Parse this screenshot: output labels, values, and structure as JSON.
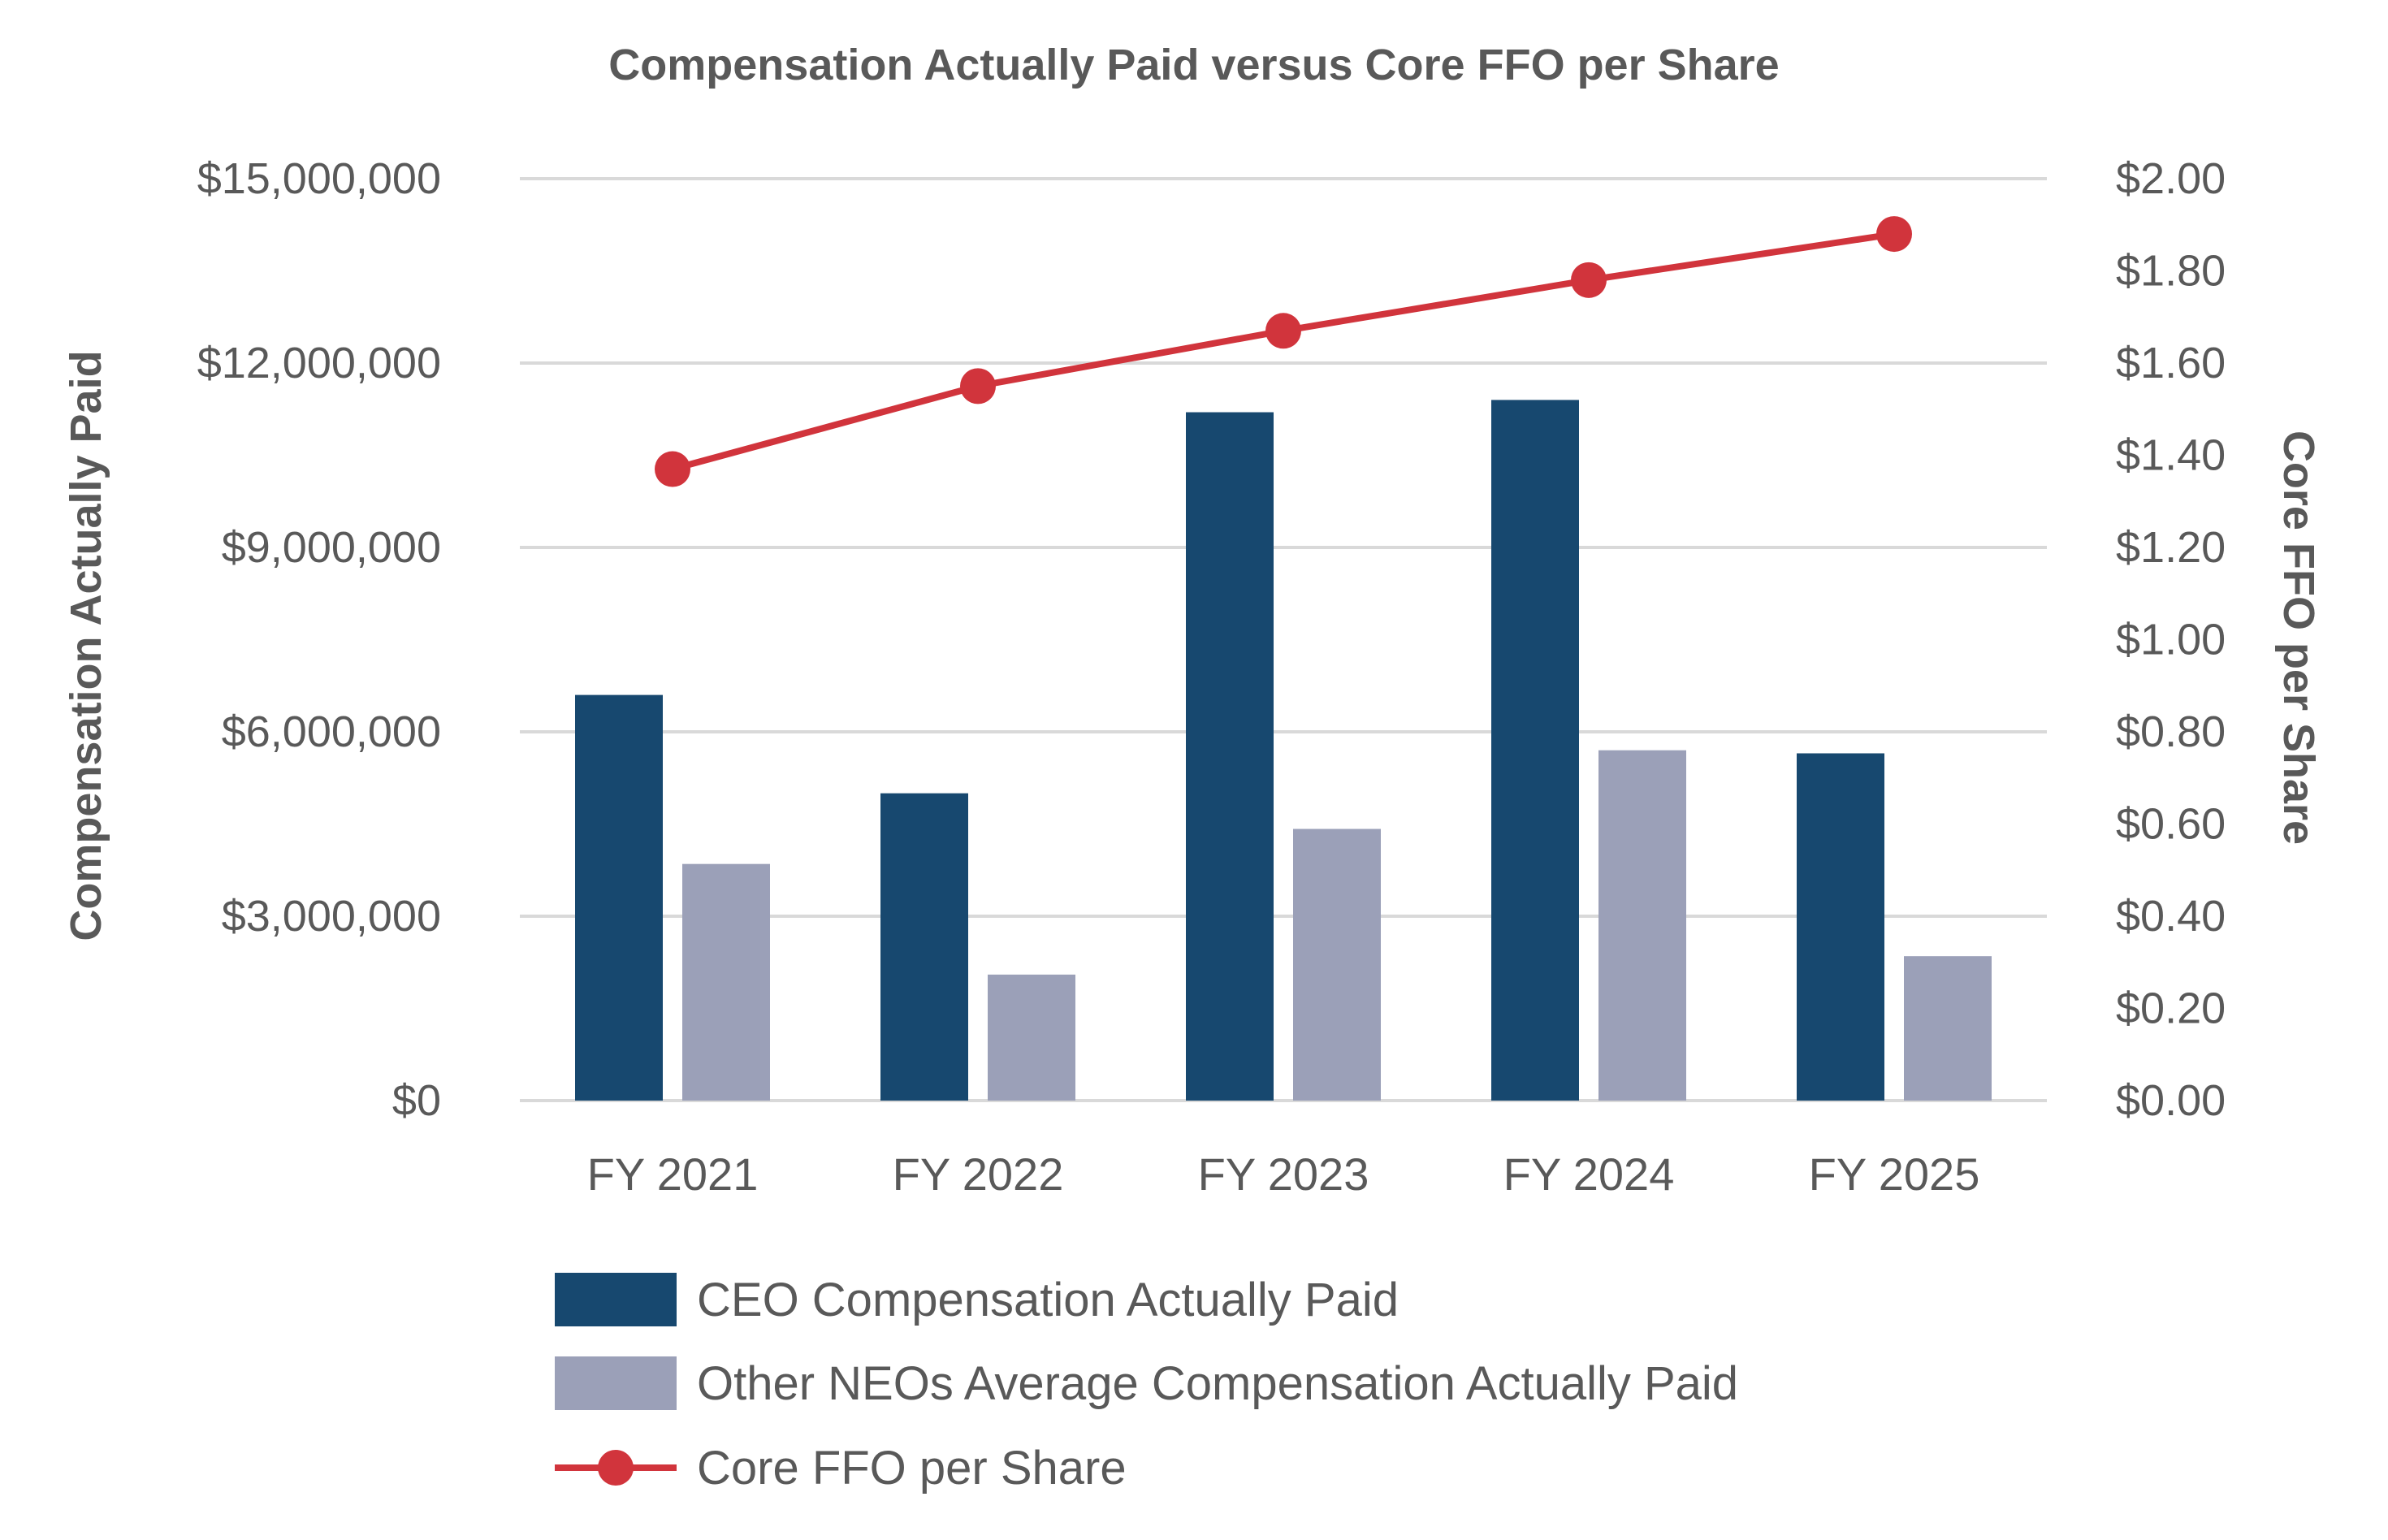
{
  "chart_data": {
    "type": "bar",
    "title": "Compensation Actually Paid versus Core FFO per Share",
    "ylabel": "Compensation Actually Paid",
    "y2label": "Core FFO per Share",
    "xlabel": "",
    "categories": [
      "FY 2021",
      "FY 2022",
      "FY 2023",
      "FY 2024",
      "FY 2025"
    ],
    "ylim": [
      0,
      15000000
    ],
    "y2lim": [
      0,
      2.0
    ],
    "y_ticks": [
      "$0",
      "$3,000,000",
      "$6,000,000",
      "$9,000,000",
      "$12,000,000",
      "$15,000,000"
    ],
    "y2_ticks": [
      "$0.00",
      "$0.20",
      "$0.40",
      "$0.60",
      "$0.80",
      "$1.00",
      "$1.20",
      "$1.40",
      "$1.60",
      "$1.80",
      "$2.00"
    ],
    "grid": true,
    "legend_position": "bottom",
    "series": [
      {
        "name": "CEO Compensation Actually Paid",
        "type": "bar",
        "axis": "left",
        "color": "#17486F",
        "values": [
          6600000,
          5000000,
          11200000,
          11400000,
          5650000
        ]
      },
      {
        "name": "Other NEOs Average Compensation Actually Paid",
        "type": "bar",
        "axis": "left",
        "color": "#9BA0B8",
        "values": [
          3850000,
          2050000,
          4420000,
          5700000,
          2350000
        ]
      },
      {
        "name": "Core FFO per Share",
        "type": "line",
        "axis": "right",
        "color": "#D1343C",
        "values": [
          1.37,
          1.55,
          1.67,
          1.78,
          1.88
        ]
      }
    ]
  }
}
